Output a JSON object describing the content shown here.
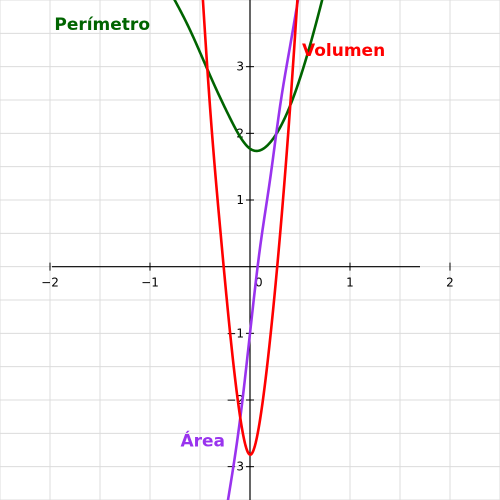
{
  "chart_data": {
    "type": "line",
    "title": "",
    "xlabel": "",
    "ylabel": "",
    "xlim": [
      -2.5,
      2.5
    ],
    "ylim": [
      -3.5,
      4
    ],
    "grid": true,
    "x_ticks": [
      {
        "value": -2,
        "label": "−2"
      },
      {
        "value": -1,
        "label": "−1"
      },
      {
        "value": 0,
        "label": "0"
      },
      {
        "value": 1,
        "label": "1"
      },
      {
        "value": 2,
        "label": "2"
      }
    ],
    "y_ticks": [
      {
        "value": -3,
        "label": "−3"
      },
      {
        "value": -2,
        "label": "−2"
      },
      {
        "value": -1,
        "label": "−1"
      },
      {
        "value": 1,
        "label": "1"
      },
      {
        "value": 2,
        "label": "2"
      },
      {
        "value": 3,
        "label": "3"
      }
    ],
    "series": [
      {
        "name": "Perímetro",
        "color": "#006400",
        "x": [
          -0.85,
          -0.6,
          -0.4,
          -0.2,
          0,
          0.2,
          0.4,
          0.6,
          0.85
        ],
        "y": [
          4.26,
          3.55,
          2.87,
          2.23,
          1.77,
          1.86,
          2.41,
          3.32,
          4.77
        ]
      },
      {
        "name": "Área",
        "color": "#9933ee",
        "x": [
          -0.22,
          -0.1,
          0,
          0.1,
          0.2,
          0.3,
          0.4,
          0.48
        ],
        "y": [
          -3.5,
          -2.3,
          -1.0,
          0.28,
          1.3,
          2.4,
          3.3,
          4.0
        ]
      },
      {
        "name": "Volumen",
        "color": "#ff0000",
        "x": [
          -0.5,
          -0.4,
          -0.3,
          -0.2,
          -0.1,
          0,
          0.1,
          0.2,
          0.3,
          0.4,
          0.5
        ],
        "y": [
          4.7,
          2.4,
          0.6,
          -0.98,
          -2.24,
          -2.82,
          -2.3,
          -1.1,
          0.47,
          2.37,
          4.6
        ]
      }
    ],
    "labels": [
      {
        "text": "Perímetro",
        "series": "Perímetro",
        "color": "#006400"
      },
      {
        "text": "Volumen",
        "series": "Volumen",
        "color": "#ff0000"
      },
      {
        "text": "Área",
        "series": "Área",
        "color": "#9933ee"
      }
    ]
  }
}
